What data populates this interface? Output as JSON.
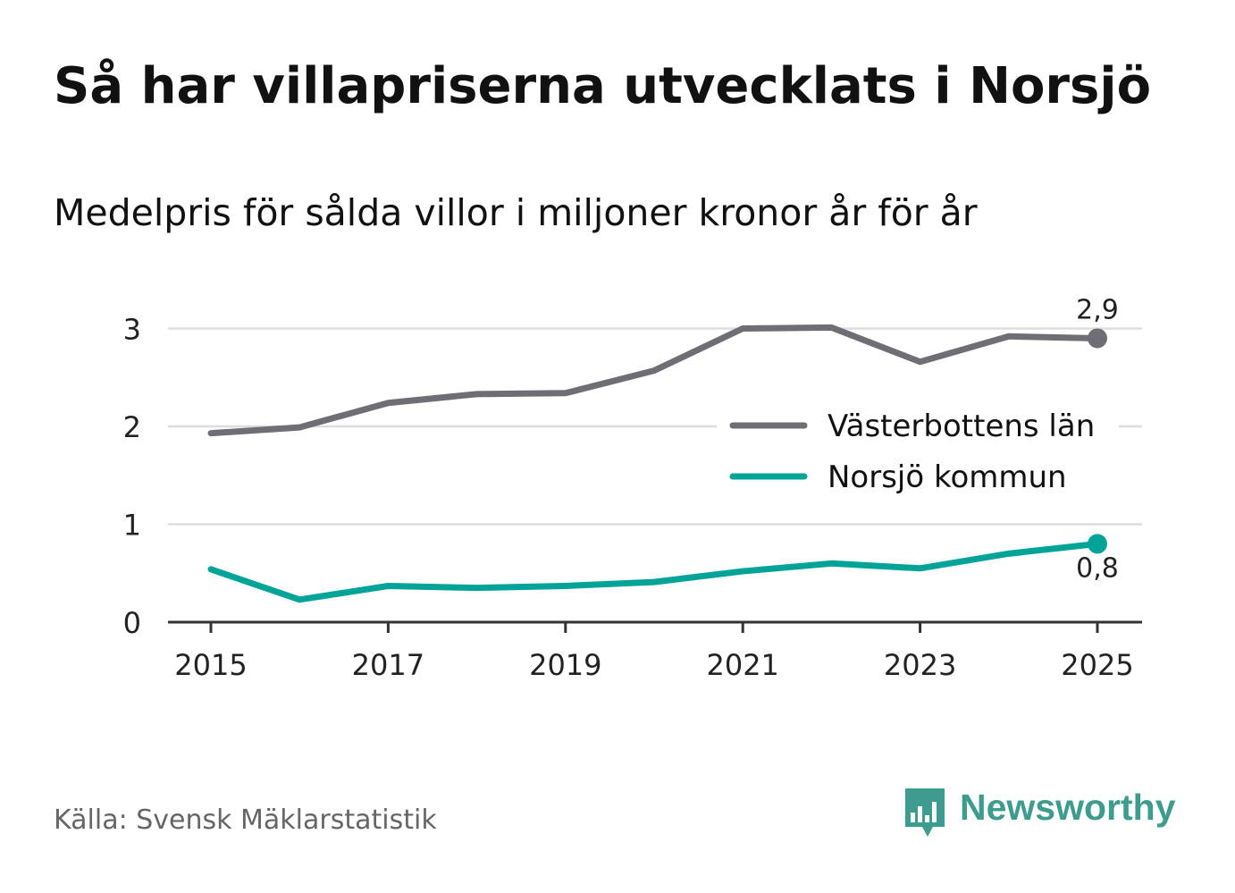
{
  "header": {
    "title": "Så har villapriserna utvecklats i Norsjö",
    "subtitle": "Medelpris för sålda villor i miljoner kronor år för år"
  },
  "footer": {
    "source": "Källa: Svensk Mäklarstatistik",
    "brand": "Newsworthy",
    "brand_icon": "bar-chart-speech-bubble-icon",
    "brand_color": "#3d9c8e"
  },
  "chart_data": {
    "type": "line",
    "title": "Så har villapriserna utvecklats i Norsjö",
    "subtitle": "Medelpris för sålda villor i miljoner kronor år för år",
    "xlabel": "",
    "ylabel": "",
    "x": [
      2015,
      2016,
      2017,
      2018,
      2019,
      2020,
      2021,
      2022,
      2023,
      2024,
      2025
    ],
    "x_tick_labels": [
      "2015",
      "2017",
      "2019",
      "2021",
      "2023",
      "2025"
    ],
    "x_ticks": [
      2015,
      2017,
      2019,
      2021,
      2023,
      2025
    ],
    "y_ticks": [
      0,
      1,
      2,
      3
    ],
    "y_tick_labels": [
      "0",
      "1",
      "2",
      "3"
    ],
    "ylim": [
      0,
      3.3
    ],
    "xlim": [
      2014.5,
      2025.5
    ],
    "grid": true,
    "legend_position": "right-middle",
    "series": [
      {
        "name": "Västerbottens län",
        "color": "#6f6e75",
        "values": [
          1.93,
          1.99,
          2.24,
          2.33,
          2.34,
          2.57,
          3.0,
          3.01,
          2.66,
          2.92,
          2.9
        ],
        "end_label": "2,9",
        "end_label_position": "above"
      },
      {
        "name": "Norsjö kommun",
        "color": "#00a398",
        "values": [
          0.54,
          0.23,
          0.37,
          0.35,
          0.37,
          0.41,
          0.52,
          0.6,
          0.55,
          0.7,
          0.8
        ],
        "end_label": "0,8",
        "end_label_position": "below"
      }
    ]
  }
}
